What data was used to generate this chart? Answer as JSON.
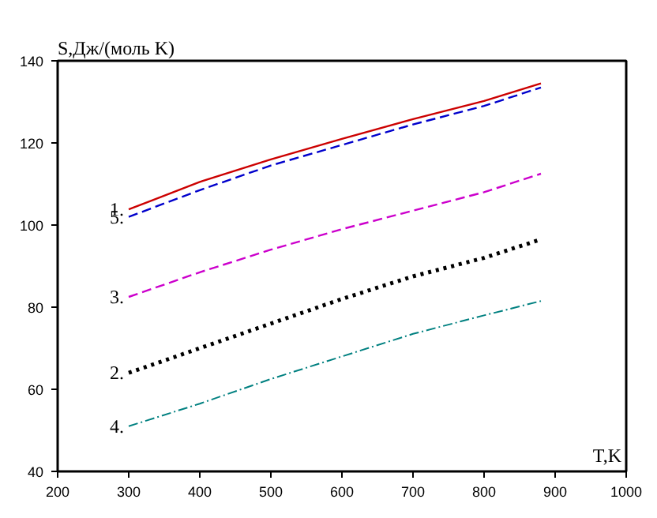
{
  "chart_data": {
    "type": "line",
    "xlabel": "T,K",
    "ylabel": "S,Дж/(моль K)",
    "x": [
      300,
      400,
      500,
      600,
      700,
      800,
      880
    ],
    "series": [
      {
        "name": "1.",
        "color": "#cc0000",
        "line_style": "solid",
        "values": [
          103.8,
          110.5,
          116,
          121,
          125.8,
          130.2,
          134.5
        ]
      },
      {
        "name": "5.",
        "color": "#0000cc",
        "line_style": "dashed",
        "values": [
          102,
          108.5,
          114.5,
          119.5,
          124.5,
          129,
          133.5
        ]
      },
      {
        "name": "3.",
        "color": "#cc00cc",
        "line_style": "dashed",
        "values": [
          82.5,
          88.5,
          94,
          99,
          103.5,
          108,
          112.5
        ]
      },
      {
        "name": "2.",
        "color": "#000000",
        "line_style": "dotted",
        "values": [
          64,
          70,
          76,
          82,
          87.5,
          92,
          96.5
        ]
      },
      {
        "name": "4.",
        "color": "#008080",
        "line_style": "dashdot",
        "values": [
          51,
          56.5,
          62.5,
          68,
          73.5,
          78,
          81.5
        ]
      }
    ],
    "xlim": [
      200,
      1000
    ],
    "ylim": [
      40,
      140
    ],
    "xticks": [
      200,
      300,
      400,
      500,
      600,
      700,
      800,
      900,
      1000
    ],
    "yticks": [
      40,
      60,
      80,
      100,
      120,
      140
    ],
    "grid": false,
    "legend": false,
    "marker": "none"
  }
}
